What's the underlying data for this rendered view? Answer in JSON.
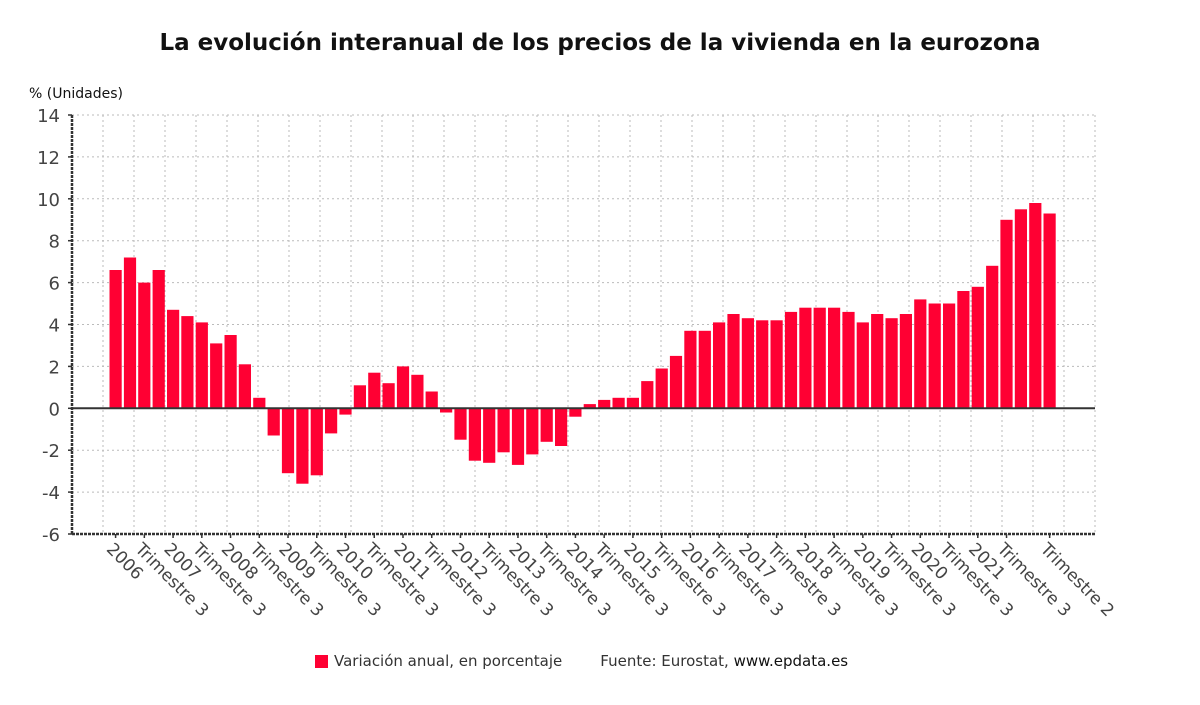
{
  "chart_data": {
    "type": "bar",
    "title": "La evolución interanual de los precios de la vivienda en la eurozona",
    "ylabel": "% (Unidades)",
    "xlabel": "",
    "ylim": [
      -6,
      14
    ],
    "yticks": [
      14,
      12,
      10,
      8,
      6,
      4,
      2,
      0,
      -2,
      -4,
      -6
    ],
    "grid": true,
    "legend_position": "bottom",
    "bar_color": "#ff0033",
    "categories": [
      "2006 T1",
      "2006 T2",
      "2006 T3",
      "2006 T4",
      "2007 T1",
      "2007 T2",
      "2007 T3",
      "2007 T4",
      "2008 T1",
      "2008 T2",
      "2008 T3",
      "2008 T4",
      "2009 T1",
      "2009 T2",
      "2009 T3",
      "2009 T4",
      "2010 T1",
      "2010 T2",
      "2010 T3",
      "2010 T4",
      "2011 T1",
      "2011 T2",
      "2011 T3",
      "2011 T4",
      "2012 T1",
      "2012 T2",
      "2012 T3",
      "2012 T4",
      "2013 T1",
      "2013 T2",
      "2013 T3",
      "2013 T4",
      "2014 T1",
      "2014 T2",
      "2014 T3",
      "2014 T4",
      "2015 T1",
      "2015 T2",
      "2015 T3",
      "2015 T4",
      "2016 T1",
      "2016 T2",
      "2016 T3",
      "2016 T4",
      "2017 T1",
      "2017 T2",
      "2017 T3",
      "2017 T4",
      "2018 T1",
      "2018 T2",
      "2018 T3",
      "2018 T4",
      "2019 T1",
      "2019 T2",
      "2019 T3",
      "2019 T4",
      "2020 T1",
      "2020 T2",
      "2020 T3",
      "2020 T4",
      "2021 T1",
      "2021 T2",
      "2021 T3",
      "2021 T4",
      "2022 T1",
      "2022 T2"
    ],
    "series": [
      {
        "name": "Variación anual, en porcentaje",
        "values": [
          6.6,
          7.2,
          6.0,
          6.6,
          4.7,
          4.4,
          4.1,
          3.1,
          3.5,
          2.1,
          0.5,
          -1.3,
          -3.1,
          -3.6,
          -3.2,
          -1.2,
          -0.3,
          1.1,
          1.7,
          1.2,
          2.0,
          1.6,
          0.8,
          -0.2,
          -1.5,
          -2.5,
          -2.6,
          -2.1,
          -2.7,
          -2.2,
          -1.6,
          -1.8,
          -0.4,
          0.2,
          0.4,
          0.5,
          0.5,
          1.3,
          1.9,
          2.5,
          3.7,
          3.7,
          4.1,
          4.5,
          4.3,
          4.2,
          4.2,
          4.6,
          4.8,
          4.8,
          4.8,
          4.6,
          4.1,
          4.5,
          4.3,
          4.5,
          5.2,
          5.0,
          5.0,
          5.6,
          5.8,
          6.8,
          9.0,
          9.5,
          9.8,
          9.3
        ]
      }
    ],
    "xtick_labels": [
      {
        "index": 0,
        "label": "2006"
      },
      {
        "index": 2,
        "label": "Trimestre 3"
      },
      {
        "index": 4,
        "label": "2007"
      },
      {
        "index": 6,
        "label": "Trimestre 3"
      },
      {
        "index": 8,
        "label": "2008"
      },
      {
        "index": 10,
        "label": "Trimestre 3"
      },
      {
        "index": 12,
        "label": "2009"
      },
      {
        "index": 14,
        "label": "Trimestre 3"
      },
      {
        "index": 16,
        "label": "2010"
      },
      {
        "index": 18,
        "label": "Trimestre 3"
      },
      {
        "index": 20,
        "label": "2011"
      },
      {
        "index": 22,
        "label": "Trimestre 3"
      },
      {
        "index": 24,
        "label": "2012"
      },
      {
        "index": 26,
        "label": "Trimestre 3"
      },
      {
        "index": 28,
        "label": "2013"
      },
      {
        "index": 30,
        "label": "Trimestre 3"
      },
      {
        "index": 32,
        "label": "2014"
      },
      {
        "index": 34,
        "label": "Trimestre 3"
      },
      {
        "index": 36,
        "label": "2015"
      },
      {
        "index": 38,
        "label": "Trimestre 3"
      },
      {
        "index": 40,
        "label": "2016"
      },
      {
        "index": 42,
        "label": "Trimestre 3"
      },
      {
        "index": 44,
        "label": "2017"
      },
      {
        "index": 46,
        "label": "Trimestre 3"
      },
      {
        "index": 48,
        "label": "2018"
      },
      {
        "index": 50,
        "label": "Trimestre 3"
      },
      {
        "index": 52,
        "label": "2019"
      },
      {
        "index": 54,
        "label": "Trimestre 3"
      },
      {
        "index": 56,
        "label": "2020"
      },
      {
        "index": 58,
        "label": "Trimestre 3"
      },
      {
        "index": 60,
        "label": "2021"
      },
      {
        "index": 62,
        "label": "Trimestre 3"
      },
      {
        "index": 65,
        "label": "Trimestre 2"
      }
    ]
  },
  "legend": {
    "series_label": "Variación anual, en porcentaje",
    "source_prefix": "Fuente: Eurostat, ",
    "source_url": "www.epdata.es"
  }
}
